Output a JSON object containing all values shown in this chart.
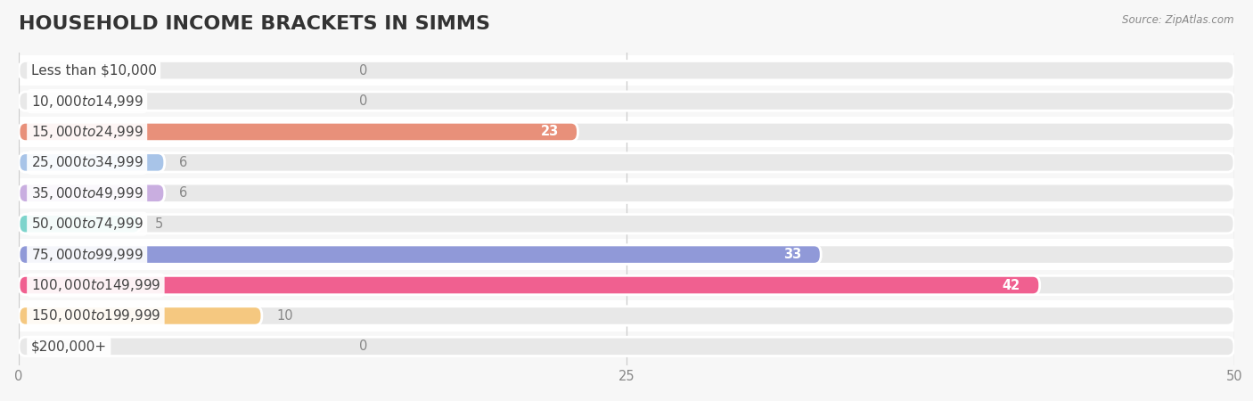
{
  "title": "HOUSEHOLD INCOME BRACKETS IN SIMMS",
  "source": "Source: ZipAtlas.com",
  "categories": [
    "Less than $10,000",
    "$10,000 to $14,999",
    "$15,000 to $24,999",
    "$25,000 to $34,999",
    "$35,000 to $49,999",
    "$50,000 to $74,999",
    "$75,000 to $99,999",
    "$100,000 to $149,999",
    "$150,000 to $199,999",
    "$200,000+"
  ],
  "values": [
    0,
    0,
    23,
    6,
    6,
    5,
    33,
    42,
    10,
    0
  ],
  "bar_colors": [
    "#f0a0aa",
    "#f5c9a0",
    "#e8907a",
    "#a8c4e8",
    "#c9aee0",
    "#7dd4cc",
    "#9099d8",
    "#f06090",
    "#f5c880",
    "#f4b8b8"
  ],
  "xlim": [
    0,
    50
  ],
  "xticks": [
    0,
    25,
    50
  ],
  "background_color": "#f7f7f7",
  "bar_background_color": "#e8e8e8",
  "row_bg_color": "#f0f0f0",
  "title_fontsize": 16,
  "label_fontsize": 11,
  "value_fontsize": 10.5
}
